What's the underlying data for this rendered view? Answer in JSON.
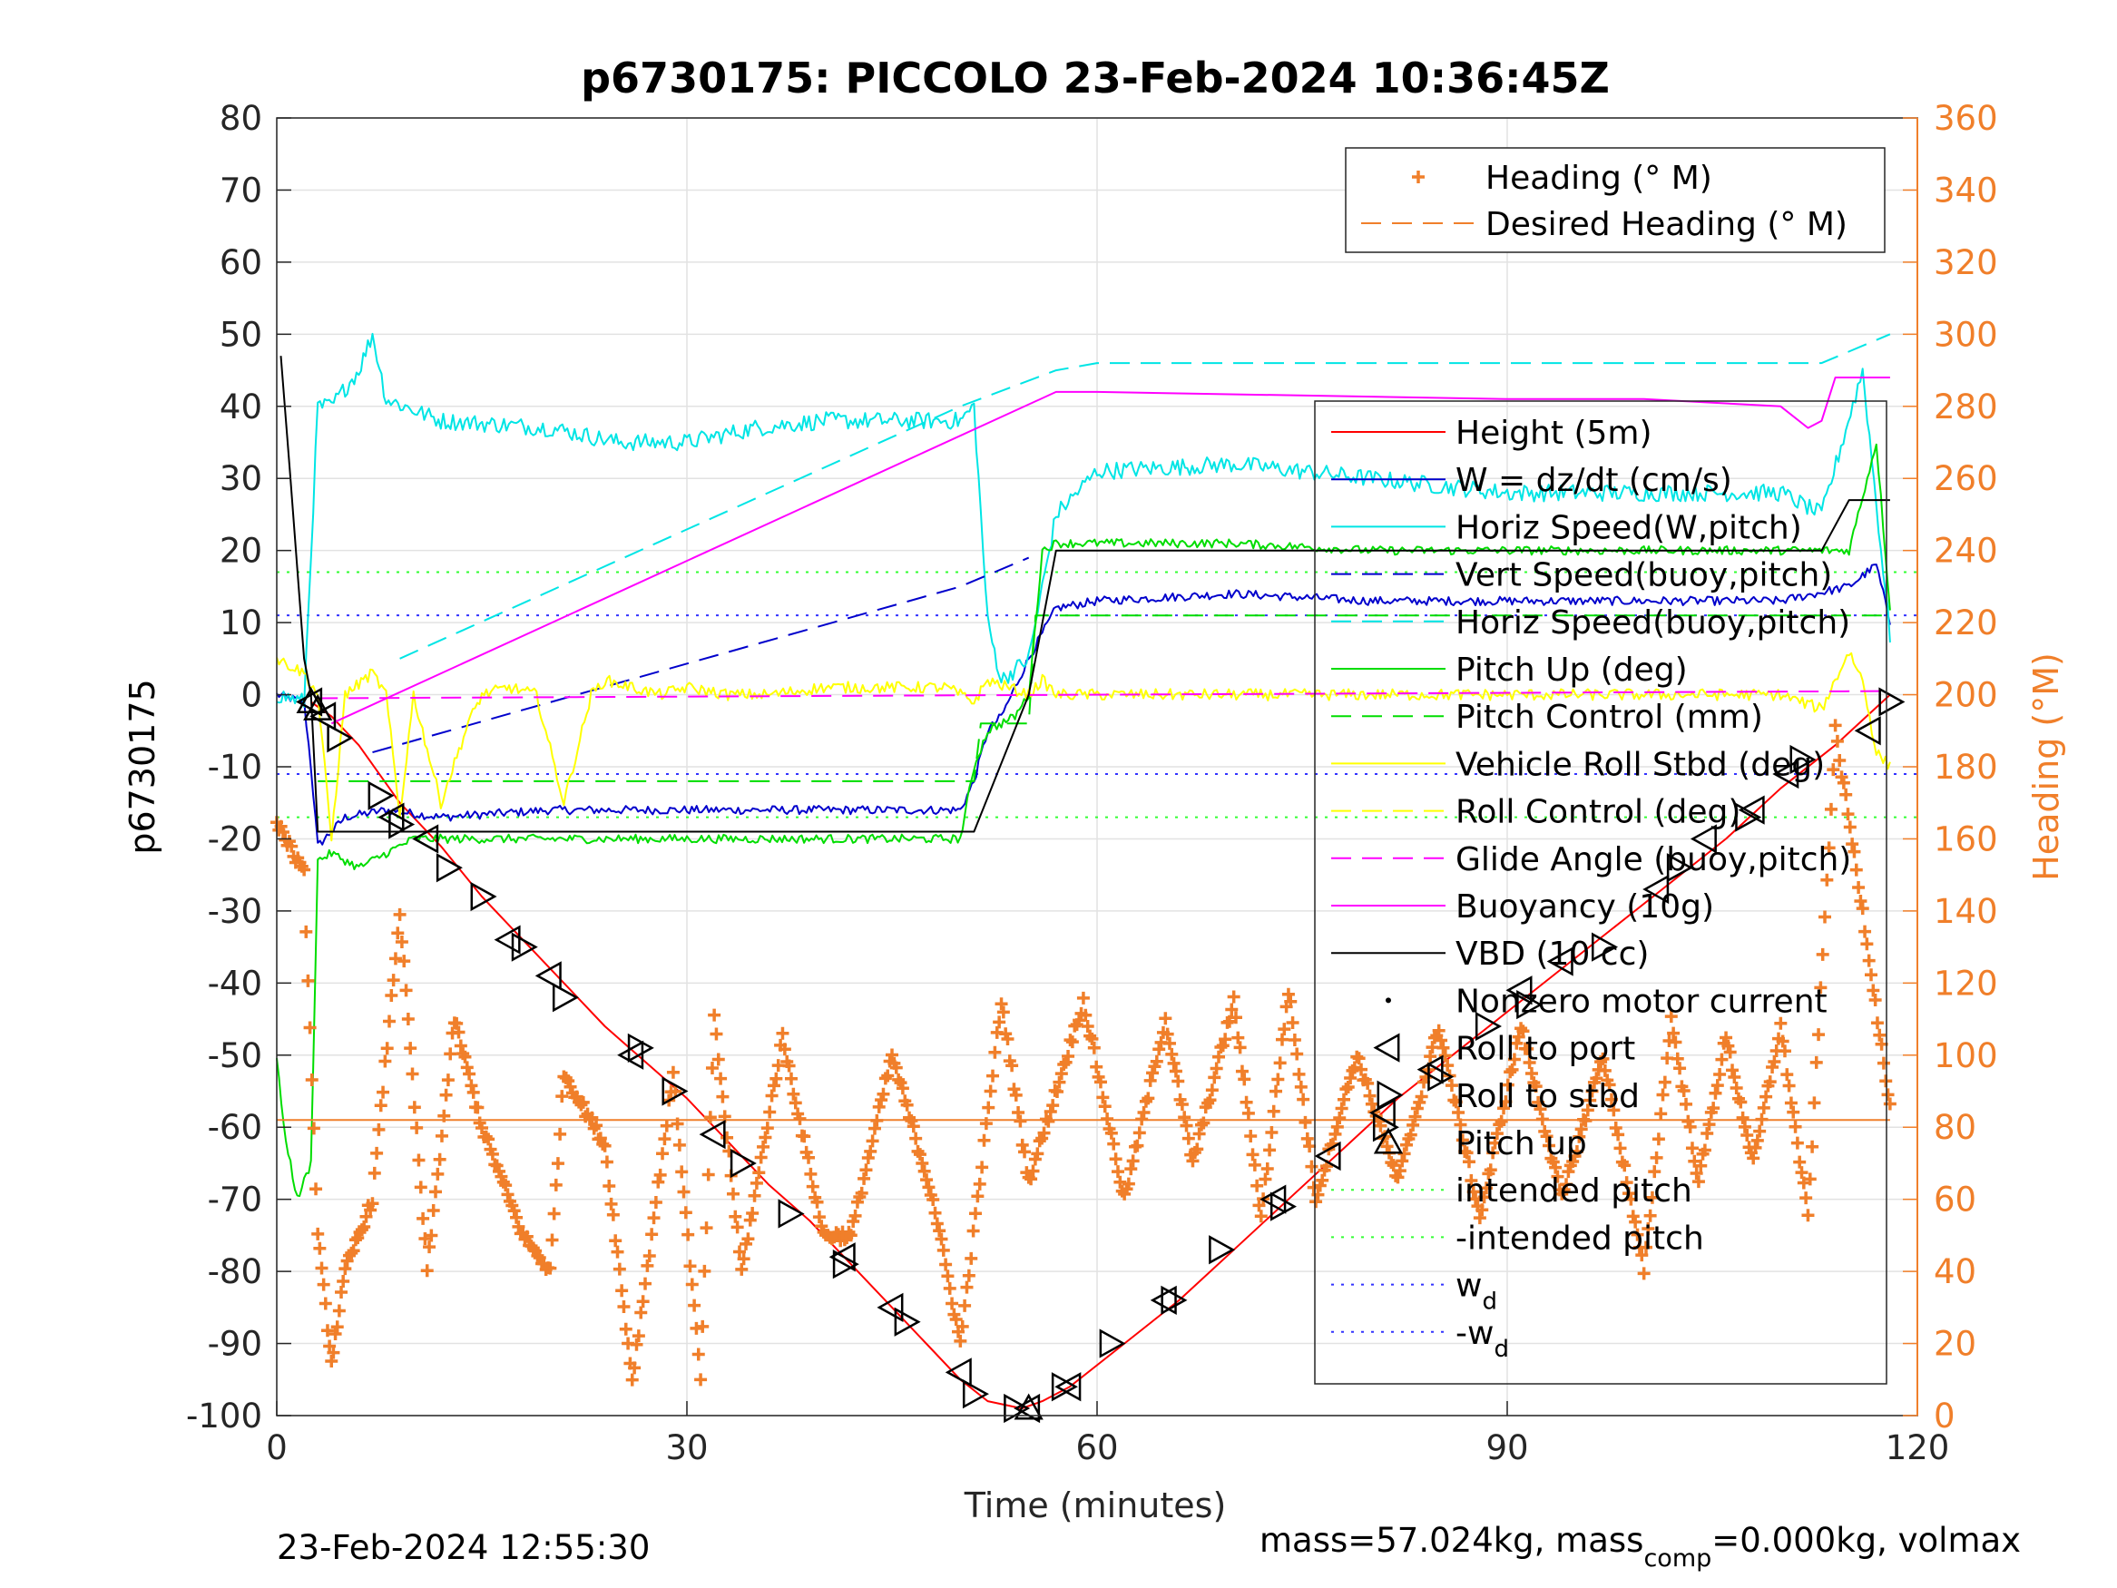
{
  "colors": {
    "height": "#ff0000",
    "w": "#0000cc",
    "horiz": "#00e5e5",
    "pitch": "#00dd00",
    "roll": "#ffff00",
    "glide": "#ff00ff",
    "vbd": "#000000",
    "heading": "#f07f2a",
    "intended": "#33ff33",
    "wd": "#3333ff"
  },
  "chart_data": {
    "type": "line",
    "title": "p6730175: PICCOLO 23-Feb-2024 10:36:45Z",
    "xlabel": "Time (minutes)",
    "ylabel": "p6730175",
    "y2label": "Heading (°M)",
    "xlim": [
      0,
      120
    ],
    "ylim": [
      -100,
      80
    ],
    "y2lim": [
      0,
      360
    ],
    "x_ticks": [
      "0",
      "30",
      "60",
      "90",
      "120"
    ],
    "y_ticks": [
      "80",
      "70",
      "60",
      "50",
      "40",
      "30",
      "20",
      "10",
      "0",
      "-10",
      "-20",
      "-30",
      "-40",
      "-50",
      "-60",
      "-70",
      "-80",
      "-90",
      "-100"
    ],
    "y2_ticks": [
      "360",
      "340",
      "320",
      "300",
      "280",
      "260",
      "240",
      "220",
      "200",
      "180",
      "160",
      "140",
      "120",
      "100",
      "80",
      "60",
      "40",
      "20",
      "0"
    ],
    "grid": true,
    "footer_left": "23-Feb-2024 12:55:30",
    "footer_right": {
      "pre": "mass=57.024kg, mass",
      "sub": "comp",
      "post": "=0.000kg, volmax"
    },
    "legend_top": [
      {
        "label": "Heading (° M)",
        "style": "plus",
        "color": "heading"
      },
      {
        "label": "Desired Heading (° M)",
        "style": "dash",
        "color": "heading"
      }
    ],
    "legend_main": [
      {
        "label": "Height (5m)",
        "style": "solid",
        "color": "height"
      },
      {
        "label": "W = dz/dt (cm/s)",
        "style": "solid",
        "color": "w"
      },
      {
        "label": "Horiz Speed(W,pitch)",
        "style": "solid",
        "color": "horiz"
      },
      {
        "label": "Vert Speed(buoy,pitch)",
        "style": "dash",
        "color": "w"
      },
      {
        "label": "Horiz Speed(buoy,pitch)",
        "style": "dash",
        "color": "horiz"
      },
      {
        "label": "Pitch Up (deg)",
        "style": "solid",
        "color": "pitch"
      },
      {
        "label": "Pitch Control (mm)",
        "style": "dash",
        "color": "pitch"
      },
      {
        "label": "Vehicle Roll Stbd (deg)",
        "style": "solid",
        "color": "roll"
      },
      {
        "label": "Roll Control (deg)",
        "style": "dash",
        "color": "roll"
      },
      {
        "label": "Glide Angle (buoy,pitch)",
        "style": "dash",
        "color": "glide"
      },
      {
        "label": "Buoyancy (10g)",
        "style": "solid",
        "color": "glide"
      },
      {
        "label": "VBD (10 cc)",
        "style": "solid",
        "color": "vbd"
      },
      {
        "label": "Nonzero motor current",
        "style": "dot",
        "color": "vbd"
      },
      {
        "label": "Roll to port",
        "style": "tri-left",
        "color": "vbd"
      },
      {
        "label": "Roll to stbd",
        "style": "tri-right",
        "color": "vbd"
      },
      {
        "label": "Pitch up",
        "style": "tri-up",
        "color": "vbd"
      },
      {
        "label": "intended pitch",
        "style": "dotline",
        "color": "intended"
      },
      {
        "label": "-intended pitch",
        "style": "dotline",
        "color": "intended"
      },
      {
        "label": "w",
        "sub": "d",
        "style": "dotline",
        "color": "wd"
      },
      {
        "label": "-w",
        "sub": "d",
        "style": "dotline",
        "color": "wd"
      }
    ],
    "series": [
      {
        "name": "Height (5m)",
        "color": "height",
        "axis": "left",
        "x": [
          2.5,
          4,
          6,
          9,
          12,
          15,
          18,
          21,
          24,
          27,
          30,
          33,
          36,
          39,
          42,
          45,
          48,
          50,
          52,
          54.5,
          56,
          58,
          62,
          66,
          70,
          74,
          78,
          82,
          86,
          90,
          94,
          98,
          102,
          106,
          110,
          114,
          118
        ],
        "y": [
          -1,
          -3,
          -7,
          -15,
          -21,
          -28,
          -34,
          -40,
          -46,
          -51,
          -56,
          -62,
          -68,
          -73,
          -79,
          -85,
          -91,
          -95,
          -98,
          -99,
          -98,
          -96,
          -90,
          -84,
          -77,
          -70,
          -63,
          -56,
          -50,
          -44,
          -38,
          -32,
          -26,
          -20,
          -13,
          -7,
          0
        ]
      },
      {
        "name": "W = dz/dt (cm/s)",
        "color": "w",
        "axis": "left",
        "noise": 0.6,
        "x": [
          0,
          2,
          2.5,
          3,
          5,
          8,
          12,
          20,
          30,
          40,
          50,
          51,
          52,
          53,
          55,
          57,
          60,
          70,
          80,
          90,
          100,
          110,
          115,
          117,
          118
        ],
        "y": [
          0,
          -1,
          -10,
          -21,
          -17,
          -16,
          -17,
          -16,
          -16,
          -16,
          -16,
          -12,
          -5,
          -3,
          5,
          12,
          13,
          14,
          13,
          13,
          13,
          13,
          15,
          18,
          10
        ]
      },
      {
        "name": "Horiz Speed(W,pitch)",
        "color": "horiz",
        "axis": "left",
        "noise": 1.2,
        "x": [
          0,
          2,
          3,
          4,
          6,
          7,
          8,
          12,
          20,
          25,
          30,
          35,
          40,
          50,
          51,
          52,
          53,
          55,
          57,
          60,
          70,
          80,
          90,
          100,
          110,
          113,
          116,
          118
        ],
        "y": [
          0,
          -1,
          40,
          40,
          45,
          50,
          41,
          38,
          37,
          35,
          35,
          37,
          38,
          38,
          40,
          10,
          2,
          5,
          25,
          31,
          32,
          30,
          28,
          28,
          28,
          25,
          45,
          8
        ]
      },
      {
        "name": "Vert Speed(buoy,pitch)",
        "color": "w",
        "axis": "left",
        "dash": "22,12",
        "x": [
          7,
          50,
          55
        ],
        "y": [
          -8,
          15,
          19
        ]
      },
      {
        "name": "Horiz Speed(buoy,pitch)",
        "color": "horiz",
        "axis": "left",
        "dash": "22,12",
        "x": [
          9,
          50,
          57,
          60,
          90,
          113,
          118
        ],
        "y": [
          5,
          40,
          45,
          46,
          46,
          46,
          50
        ]
      },
      {
        "name": "Pitch Up (deg)",
        "color": "pitch",
        "axis": "left",
        "noise": 0.6,
        "x": [
          0,
          0.5,
          1.5,
          2.5,
          3,
          4,
          6,
          8,
          10,
          20,
          30,
          40,
          50,
          51,
          52,
          54,
          55,
          56,
          57,
          60,
          70,
          80,
          90,
          100,
          110,
          115,
          117,
          118
        ],
        "y": [
          -50,
          -60,
          -70,
          -65,
          -23,
          -22,
          -24,
          -22,
          -20,
          -20,
          -20,
          -20,
          -20,
          -10,
          -5,
          -3,
          0,
          20,
          21,
          21,
          21,
          20,
          20,
          20,
          20,
          20,
          35,
          12
        ]
      },
      {
        "name": "Pitch Control (mm)",
        "color": "pitch",
        "axis": "left",
        "dash": "22,12",
        "x": [
          3,
          51,
          51.5,
          55,
          55.5,
          118
        ],
        "y": [
          -12,
          -12,
          -4,
          -4,
          11,
          11
        ]
      },
      {
        "name": "Vehicle Roll Stbd (deg)",
        "color": "roll",
        "axis": "left",
        "noise": 0.8,
        "x": [
          0,
          2,
          3,
          4,
          5,
          7,
          8,
          9,
          10,
          12,
          14,
          15,
          17,
          19,
          21,
          23,
          24,
          26,
          28,
          30,
          33,
          36,
          40,
          45,
          49,
          50,
          51,
          52,
          55,
          56,
          57,
          60,
          65,
          70,
          80,
          90,
          100,
          105,
          110,
          113,
          115,
          116,
          117,
          118
        ],
        "y": [
          5,
          3,
          0,
          -20,
          0,
          3,
          0,
          -17,
          0,
          -15,
          -4,
          0,
          1,
          0,
          -15,
          0,
          2,
          1,
          0,
          1,
          0,
          0,
          1,
          1,
          1,
          0,
          -1,
          2,
          0,
          2,
          0,
          0,
          0,
          0,
          0,
          0,
          0,
          0,
          0,
          -2,
          6,
          2,
          -8,
          -10
        ]
      },
      {
        "name": "Glide Angle (buoy,pitch)",
        "color": "glide",
        "axis": "left",
        "dash": "22,12",
        "x": [
          3,
          118
        ],
        "y": [
          -0.5,
          0.5
        ]
      },
      {
        "name": "Buoyancy (10g)",
        "color": "glide",
        "axis": "left",
        "x": [
          4,
          57,
          60,
          90,
          100,
          110,
          112,
          113,
          114,
          118
        ],
        "y": [
          -4,
          42,
          42,
          41,
          41,
          40,
          37,
          38,
          44,
          44
        ]
      },
      {
        "name": "VBD (10 cc)",
        "color": "vbd",
        "axis": "left",
        "x": [
          0.3,
          1,
          2,
          2.5,
          3,
          5,
          10,
          20,
          30,
          40,
          51,
          55,
          57,
          60,
          90,
          110,
          113,
          115,
          118
        ],
        "y": [
          47,
          30,
          5,
          0,
          -19,
          -19,
          -19,
          -19,
          -19,
          -19,
          -19,
          0,
          20,
          20,
          20,
          20,
          20,
          27,
          27
        ]
      },
      {
        "name": "Heading (° M)",
        "color": "heading",
        "axis": "right",
        "marker": "plus",
        "x": [
          0,
          2,
          3,
          4,
          5,
          7,
          9,
          11,
          13,
          15,
          18,
          20,
          21,
          24,
          26,
          29,
          31,
          32,
          34,
          37,
          40,
          42,
          45,
          48,
          50,
          53,
          55,
          59,
          62,
          65,
          67,
          70,
          72,
          74,
          76,
          79,
          82,
          85,
          88,
          91,
          94,
          97,
          100,
          102,
          104,
          106,
          108,
          110,
          112,
          114,
          116,
          118
        ],
        "y": [
          165,
          150,
          50,
          15,
          40,
          60,
          140,
          40,
          110,
          80,
          50,
          40,
          95,
          75,
          10,
          95,
          10,
          110,
          40,
          105,
          50,
          50,
          100,
          60,
          20,
          115,
          65,
          115,
          60,
          110,
          70,
          115,
          55,
          118,
          60,
          100,
          65,
          108,
          55,
          108,
          60,
          100,
          40,
          110,
          65,
          105,
          70,
          108,
          55,
          190,
          140,
          85
        ]
      },
      {
        "name": "Desired Heading (° M)",
        "color": "heading",
        "axis": "right",
        "x": [
          0,
          118
        ],
        "y": [
          82,
          82
        ]
      }
    ],
    "markers": {
      "roll_to_port_t": [
        2.5,
        3.5,
        8.5,
        11,
        17,
        20,
        26,
        32,
        41.5,
        45,
        50,
        55,
        58,
        65,
        73,
        77,
        81,
        84.5,
        91,
        94,
        101,
        104.5,
        108,
        110.5,
        116.5
      ],
      "roll_to_port_y": [
        -1,
        -3,
        -17,
        -20,
        -34,
        -39,
        -50,
        -61,
        -78,
        -85,
        -94,
        -99,
        -96,
        -84,
        -70,
        -64,
        -58,
        -52,
        -41,
        -37,
        -27,
        -20,
        -16,
        -11,
        -5
      ],
      "roll_to_stbd_t": [
        4.5,
        7.5,
        9,
        12.5,
        15,
        18,
        21,
        26.5,
        29,
        34,
        37.5,
        41.5,
        46,
        51,
        54,
        57.5,
        61,
        65.5,
        69,
        73.5,
        81,
        85,
        88.5,
        91.5,
        97,
        102.5,
        107.5,
        111.5,
        118
      ],
      "roll_to_stbd_y": [
        -6,
        -14,
        -18,
        -24,
        -28,
        -35,
        -42,
        -49,
        -55,
        -65,
        -72,
        -79,
        -87,
        -97,
        -99,
        -96,
        -90,
        -84,
        -77,
        -71,
        -60,
        -53,
        -46,
        -43,
        -35,
        -24,
        -17,
        -9,
        -1
      ],
      "pitch_up_t": [
        2.5,
        3,
        55
      ],
      "pitch_up_y": [
        -1,
        -2,
        -99
      ]
    },
    "guides": [
      {
        "name": "intended pitch",
        "y": 17,
        "color": "intended"
      },
      {
        "name": "-intended pitch",
        "y": -17,
        "color": "intended"
      },
      {
        "name": "w_d",
        "y": 11,
        "color": "wd"
      },
      {
        "name": "-w_d",
        "y": -11,
        "color": "wd"
      }
    ]
  }
}
